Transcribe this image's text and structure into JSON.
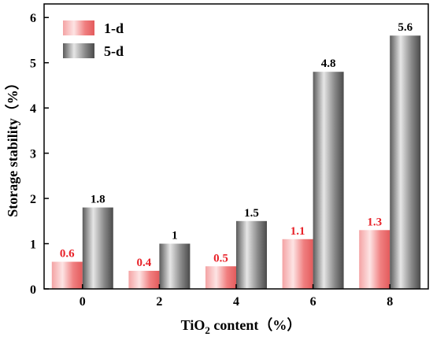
{
  "chart_data": {
    "type": "bar",
    "categories": [
      "0",
      "2",
      "4",
      "6",
      "8"
    ],
    "series": [
      {
        "name": "1-d",
        "values": [
          0.6,
          0.4,
          0.5,
          1.1,
          1.3
        ],
        "labels": [
          "0.6",
          "0.4",
          "0.5",
          "1.1",
          "1.3"
        ],
        "color": "#f07f80",
        "label_color": "#e8232a"
      },
      {
        "name": "5-d",
        "values": [
          1.8,
          1.0,
          1.5,
          4.8,
          5.6
        ],
        "labels": [
          "1.8",
          "1",
          "1.5",
          "4.8",
          "5.6"
        ],
        "color": "#8a8a8a",
        "label_color": "#000000"
      }
    ],
    "xlabel": {
      "pre": "TiO",
      "sub": "2",
      "post": " content（%）"
    },
    "ylabel": "Storage stability（%）",
    "ylim": [
      0,
      6.3
    ],
    "yticks": [
      "0",
      "1",
      "2",
      "3",
      "4",
      "5",
      "6"
    ],
    "grid": false,
    "legend_position": "top-left"
  }
}
